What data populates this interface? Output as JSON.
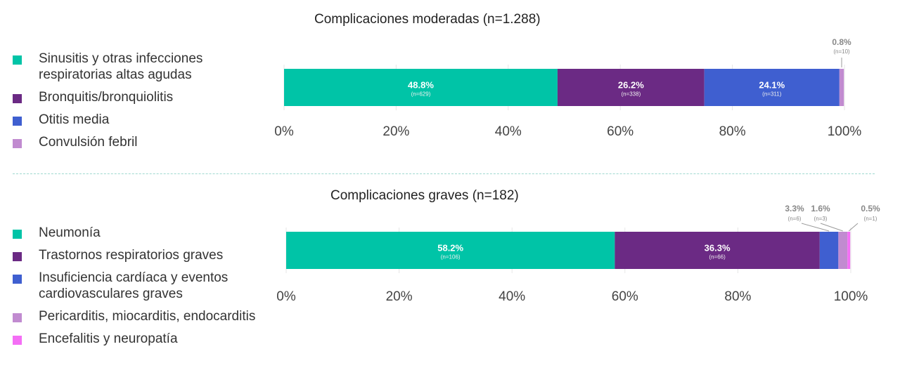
{
  "chart_data": [
    {
      "type": "bar",
      "orientation": "horizontal",
      "stacked": true,
      "title": "Complicaciones moderadas (n=1.288)",
      "xlim": [
        0,
        100
      ],
      "tick_labels": [
        "0%",
        "20%",
        "40%",
        "60%",
        "80%",
        "100%"
      ],
      "legend_position": "left",
      "series": [
        {
          "name": "Sinusitis y otras infecciones respiratorias altas agudas",
          "value": 48.8,
          "pct_label": "48.8%",
          "n_label": "(n=629)",
          "color": "#00c4a7",
          "label_outside": false
        },
        {
          "name": "Bronquitis/bronquiolitis",
          "value": 26.2,
          "pct_label": "26.2%",
          "n_label": "(n=338)",
          "color": "#6b2a84",
          "label_outside": false
        },
        {
          "name": "Otitis media",
          "value": 24.1,
          "pct_label": "24.1%",
          "n_label": "(n=311)",
          "color": "#3f5fd0",
          "label_outside": false
        },
        {
          "name": "Convulsión febril",
          "value": 0.8,
          "pct_label": "0.8%",
          "n_label": "(n=10)",
          "color": "#c18bd0",
          "label_outside": true
        }
      ]
    },
    {
      "type": "bar",
      "orientation": "horizontal",
      "stacked": true,
      "title": "Complicaciones graves (n=182)",
      "xlim": [
        0,
        100
      ],
      "tick_labels": [
        "0%",
        "20%",
        "40%",
        "60%",
        "80%",
        "100%"
      ],
      "legend_position": "left",
      "series": [
        {
          "name": "Neumonía",
          "value": 58.2,
          "pct_label": "58.2%",
          "n_label": "(n=106)",
          "color": "#00c4a7",
          "label_outside": false
        },
        {
          "name": "Trastornos respiratorios graves",
          "value": 36.3,
          "pct_label": "36.3%",
          "n_label": "(n=66)",
          "color": "#6b2a84",
          "label_outside": false
        },
        {
          "name": "Insuficiencia cardíaca y eventos cardiovasculares graves",
          "value": 3.3,
          "pct_label": "3.3%",
          "n_label": "(n=6)",
          "color": "#3f5fd0",
          "label_outside": true
        },
        {
          "name": "Pericarditis, miocarditis, endocarditis",
          "value": 1.6,
          "pct_label": "1.6%",
          "n_label": "(n=3)",
          "color": "#c18bd0",
          "label_outside": true
        },
        {
          "name": "Encefalitis y neuropatía",
          "value": 0.5,
          "pct_label": "0.5%",
          "n_label": "(n=1)",
          "color": "#f46ef5",
          "label_outside": true
        }
      ]
    }
  ]
}
